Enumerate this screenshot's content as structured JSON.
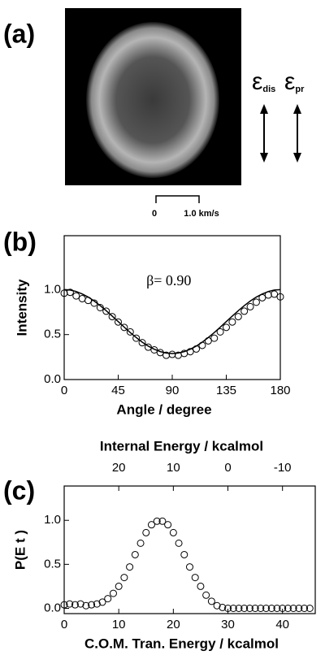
{
  "panel_a": {
    "label": "(a)",
    "polarization": [
      {
        "symbol": "ε",
        "subscript": "dis"
      },
      {
        "symbol": "ε",
        "subscript": "pr"
      }
    ],
    "scale_bar": {
      "start": "0",
      "end": "1.0 km/s"
    }
  },
  "chart_data": [
    {
      "type": "scatter",
      "label": "(b)",
      "xlabel": "Angle / degree",
      "ylabel": "Intensity",
      "annotation": "β= 0.90",
      "xlim": [
        0,
        180
      ],
      "xticks": [
        0,
        45,
        90,
        135,
        180
      ],
      "ylim": [
        0,
        1.6
      ],
      "yticks": [
        {
          "value": 0,
          "label": "0.0"
        },
        {
          "value": 0.5,
          "label": "0.5"
        },
        {
          "value": 1,
          "label": "1.0"
        }
      ],
      "x": [
        0,
        5,
        10,
        15,
        20,
        25,
        30,
        35,
        40,
        45,
        50,
        55,
        60,
        65,
        70,
        75,
        80,
        85,
        90,
        95,
        100,
        105,
        110,
        115,
        120,
        125,
        130,
        135,
        140,
        145,
        150,
        155,
        160,
        165,
        170,
        175,
        180
      ],
      "series": [
        {
          "type": "scatter",
          "color": "#000000",
          "values": [
            0.96,
            0.97,
            0.93,
            0.9,
            0.88,
            0.85,
            0.8,
            0.76,
            0.7,
            0.64,
            0.58,
            0.53,
            0.46,
            0.41,
            0.36,
            0.33,
            0.3,
            0.27,
            0.28,
            0.27,
            0.29,
            0.31,
            0.34,
            0.38,
            0.43,
            0.46,
            0.53,
            0.58,
            0.64,
            0.7,
            0.76,
            0.81,
            0.86,
            0.91,
            0.94,
            0.95,
            0.92
          ]
        },
        {
          "type": "line",
          "color": "#000000",
          "values": [
            1.0,
            0.995,
            0.979,
            0.952,
            0.917,
            0.873,
            0.822,
            0.766,
            0.706,
            0.645,
            0.583,
            0.523,
            0.467,
            0.416,
            0.372,
            0.337,
            0.311,
            0.295,
            0.289,
            0.295,
            0.311,
            0.337,
            0.372,
            0.416,
            0.467,
            0.523,
            0.583,
            0.645,
            0.706,
            0.766,
            0.822,
            0.873,
            0.917,
            0.952,
            0.979,
            0.995,
            1.0
          ]
        }
      ]
    },
    {
      "type": "scatter",
      "label": "(c)",
      "xlabel": "C.O.M. Tran. Energy / kcalmol",
      "ylabel": "P(E t )",
      "x2label": "Internal Energy / kcalmol",
      "xlim": [
        0,
        46
      ],
      "xticks": [
        0,
        10,
        20,
        30,
        40
      ],
      "x2lim": [
        30,
        -16
      ],
      "x2ticks": [
        20,
        10,
        0,
        -10
      ],
      "ylim": [
        -0.06,
        1.39
      ],
      "yticks": [
        {
          "value": 0,
          "label": "0.0"
        },
        {
          "value": 0.5,
          "label": "0.5"
        },
        {
          "value": 1,
          "label": "1.0"
        }
      ],
      "x": [
        0,
        1,
        2,
        3,
        4,
        5,
        6,
        7,
        8,
        9,
        10,
        11,
        12,
        13,
        14,
        15,
        16,
        17,
        18,
        19,
        20,
        21,
        22,
        23,
        24,
        25,
        26,
        27,
        28,
        29,
        30,
        31,
        32,
        33,
        34,
        35,
        36,
        37,
        38,
        39,
        40,
        41,
        42,
        43,
        44,
        45
      ],
      "series": [
        {
          "type": "scatter",
          "color": "#000000",
          "values": [
            0.04,
            0.05,
            0.04,
            0.05,
            0.03,
            0.04,
            0.05,
            0.07,
            0.11,
            0.17,
            0.25,
            0.35,
            0.47,
            0.61,
            0.74,
            0.86,
            0.95,
            0.99,
            0.99,
            0.95,
            0.86,
            0.74,
            0.61,
            0.47,
            0.35,
            0.25,
            0.15,
            0.08,
            0.03,
            0.01,
            0,
            0,
            0,
            0,
            0,
            0,
            0,
            0,
            0,
            0,
            0,
            0,
            0,
            0,
            0,
            0
          ]
        }
      ]
    }
  ]
}
